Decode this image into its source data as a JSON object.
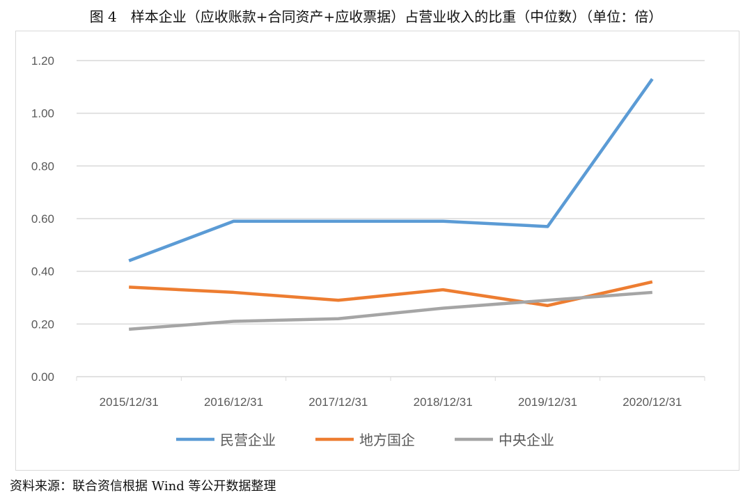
{
  "title": "图 4　样本企业（应收账款+合同资产+应收票据）占营业收入的比重（中位数）（单位：倍）",
  "source": "资料来源：联合资信根据 Wind 等公开数据整理",
  "chart_data": {
    "type": "line",
    "categories": [
      "2015/12/31",
      "2016/12/31",
      "2017/12/31",
      "2018/12/31",
      "2019/12/31",
      "2020/12/31"
    ],
    "series": [
      {
        "name": "民营企业",
        "color": "#5b9bd5",
        "values": [
          0.44,
          0.59,
          0.59,
          0.59,
          0.57,
          1.13
        ]
      },
      {
        "name": "地方国企",
        "color": "#ed7d31",
        "values": [
          0.34,
          0.32,
          0.29,
          0.33,
          0.27,
          0.36
        ]
      },
      {
        "name": "中央企业",
        "color": "#a5a5a5",
        "values": [
          0.18,
          0.21,
          0.22,
          0.26,
          0.29,
          0.32
        ]
      }
    ],
    "yticks": [
      "0.00",
      "0.20",
      "0.40",
      "0.60",
      "0.80",
      "1.00",
      "1.20"
    ],
    "ylim": [
      0,
      1.2
    ],
    "grid": true,
    "legend": "bottom"
  }
}
